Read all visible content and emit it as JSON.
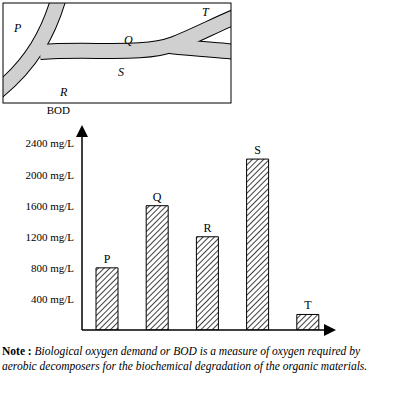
{
  "diagram": {
    "labels": [
      "P",
      "Q",
      "T",
      "S",
      "R"
    ]
  },
  "chart_data": {
    "type": "bar",
    "y_label": "BOD",
    "categories": [
      "P",
      "Q",
      "R",
      "S",
      "T"
    ],
    "values": [
      800,
      1600,
      1200,
      2200,
      200
    ],
    "color": "#000000",
    "ylim": [
      0,
      2600
    ],
    "yticks": [
      {
        "value": 400,
        "label": "400 mg/L"
      },
      {
        "value": 800,
        "label": "800 mg/L"
      },
      {
        "value": 1200,
        "label": "1200 mg/L"
      },
      {
        "value": 1600,
        "label": "1600 mg/L"
      },
      {
        "value": 2000,
        "label": "2000 mg/L"
      },
      {
        "value": 2400,
        "label": "2400 mg/L"
      }
    ],
    "grid": false,
    "tick_labels": "y"
  },
  "note": {
    "label": "Note :",
    "text": "Biological oxygen demand or BOD is a measure of oxygen required by aerobic decomposers for the biochemical degradation of the organic materials."
  }
}
